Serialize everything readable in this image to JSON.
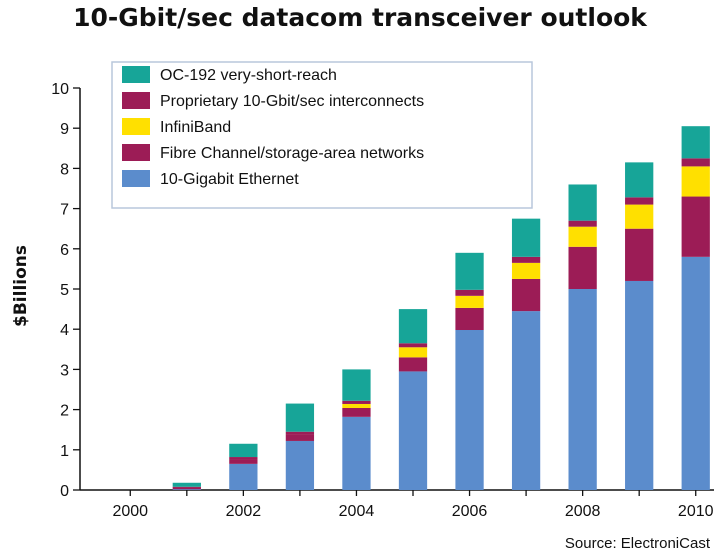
{
  "chart_data": {
    "type": "bar",
    "stacked": true,
    "title": "10-Gbit/sec datacom transceiver outlook",
    "ylabel": "$Billions",
    "xlabel": "",
    "source": "Source: ElectroniCast",
    "ylim": [
      0,
      10
    ],
    "yticks": [
      "0",
      "1",
      "2",
      "3",
      "4",
      "5",
      "6",
      "7",
      "8",
      "9",
      "10"
    ],
    "categories": [
      "2000",
      "2001",
      "2002",
      "2003",
      "2004",
      "2005",
      "2006",
      "2007",
      "2008",
      "2009",
      "2010"
    ],
    "xtick_labels": [
      "2000",
      "",
      "2002",
      "",
      "2004",
      "",
      "2006",
      "",
      "2008",
      "",
      "2010"
    ],
    "grid": false,
    "legend_position": "top-left",
    "series": [
      {
        "name": "10-Gigabit Ethernet",
        "color": "#5b8ccc",
        "values": [
          0,
          0.02,
          0.65,
          1.22,
          1.82,
          2.95,
          3.98,
          4.45,
          5.0,
          5.2,
          5.8
        ]
      },
      {
        "name": "Fibre Channel/storage-area networks",
        "color": "#9c1c56",
        "values": [
          0,
          0.05,
          0.12,
          0.15,
          0.22,
          0.35,
          0.55,
          0.8,
          1.05,
          1.3,
          1.5
        ]
      },
      {
        "name": "InfiniBand",
        "color": "#ffe000",
        "values": [
          0,
          0,
          0,
          0,
          0.1,
          0.25,
          0.3,
          0.4,
          0.5,
          0.6,
          0.75
        ]
      },
      {
        "name": "Proprietary 10-Gbit/sec interconnects",
        "color": "#9c1c56",
        "values": [
          0,
          0.01,
          0.05,
          0.08,
          0.08,
          0.1,
          0.15,
          0.15,
          0.15,
          0.18,
          0.2
        ]
      },
      {
        "name": "OC-192 very-short-reach",
        "color": "#17a598",
        "values": [
          0,
          0.1,
          0.33,
          0.7,
          0.78,
          0.85,
          0.92,
          0.95,
          0.9,
          0.87,
          0.8
        ]
      }
    ]
  }
}
